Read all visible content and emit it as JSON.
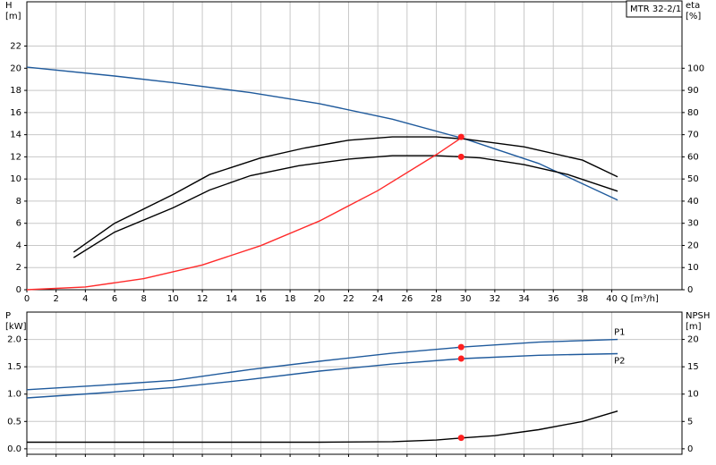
{
  "chart_data": [
    {
      "type": "line",
      "title": "MTR 32-2/1",
      "y_label": "H",
      "y_unit": "[m]",
      "y2_label": "eta",
      "y2_unit": "[%]",
      "x_label": "Q [m³/h]",
      "xlim": [
        0,
        44.8
      ],
      "xticks": [
        0,
        2,
        4,
        6,
        8,
        10,
        12,
        14,
        16,
        18,
        20,
        22,
        24,
        26,
        28,
        30,
        32,
        34,
        36,
        38,
        40
      ],
      "ylim": [
        0,
        26
      ],
      "yticks": [
        0,
        2,
        4,
        6,
        8,
        10,
        12,
        14,
        16,
        18,
        20,
        22
      ],
      "y2lim": [
        0,
        130
      ],
      "y2ticks": [
        0,
        10,
        20,
        30,
        40,
        50,
        60,
        70,
        80,
        90,
        100
      ],
      "grid": true,
      "series": [
        {
          "color": "#1f5a9c",
          "axis": "y",
          "x": [
            0,
            6,
            10,
            15.3,
            20,
            25,
            30,
            35,
            40.4
          ],
          "values": [
            20.1,
            19.3,
            18.7,
            17.8,
            16.8,
            15.4,
            13.6,
            11.4,
            8.1
          ]
        },
        {
          "color": "#000000",
          "axis": "y2",
          "x": [
            3.2,
            6,
            10,
            12.5,
            16,
            19,
            22,
            25,
            28,
            30,
            34,
            38,
            40.4
          ],
          "values": [
            17,
            30,
            43,
            52,
            59.5,
            64,
            67.5,
            69,
            69,
            68,
            64.5,
            58.5,
            51
          ]
        },
        {
          "color": "#000000",
          "axis": "y2",
          "x": [
            3.2,
            6,
            10,
            12.5,
            15.3,
            18.6,
            22,
            25,
            28,
            29.8,
            31,
            34,
            37,
            40.4
          ],
          "values": [
            14.5,
            26,
            37,
            45,
            51.5,
            56,
            59,
            60.5,
            60.5,
            60,
            59.5,
            56.5,
            52,
            44.5
          ]
        },
        {
          "color": "#ff2a2a",
          "axis": "y",
          "x": [
            0,
            4,
            8,
            12,
            16,
            20,
            24,
            28,
            29.8
          ],
          "values": [
            0,
            0.25,
            1.0,
            2.24,
            3.98,
            6.2,
            8.95,
            12.2,
            13.8
          ]
        }
      ],
      "points": [
        {
          "x": 29.7,
          "value": 13.8,
          "axis": "y",
          "color": "#ff2020"
        },
        {
          "x": 29.7,
          "value": 60,
          "axis": "y2",
          "color": "#ff2020"
        }
      ]
    },
    {
      "type": "line",
      "y_label": "P",
      "y_unit": "[kW]",
      "y2_label": "NPSH",
      "y2_unit": "[m]",
      "xlim": [
        0,
        44.8
      ],
      "xticks": [
        0,
        2,
        4,
        6,
        8,
        10,
        12,
        14,
        16,
        18,
        20,
        22,
        24,
        26,
        28,
        30,
        32,
        34,
        36,
        38,
        40
      ],
      "ylim": [
        -0.1,
        2.5
      ],
      "yticks": [
        {
          "value": 0,
          "label": "0.0"
        },
        0.5,
        {
          "value": 1,
          "label": "1.0"
        },
        1.5,
        {
          "value": 2,
          "label": "2.0"
        }
      ],
      "y2lim": [
        -1,
        25
      ],
      "y2ticks": [
        0,
        5,
        10,
        15,
        20
      ],
      "grid": true,
      "series": [
        {
          "name": "P1",
          "color": "#1f5a9c",
          "axis": "y",
          "x": [
            0,
            5,
            10,
            15.3,
            20,
            25,
            29.8,
            35,
            40.4
          ],
          "values": [
            1.08,
            1.16,
            1.25,
            1.45,
            1.6,
            1.75,
            1.86,
            1.95,
            2.0
          ]
        },
        {
          "name": "P2",
          "color": "#1f5a9c",
          "axis": "y",
          "x": [
            0,
            5,
            10,
            15,
            20,
            25,
            29.8,
            35,
            40.4
          ],
          "values": [
            0.93,
            1.02,
            1.12,
            1.26,
            1.42,
            1.55,
            1.65,
            1.71,
            1.74
          ]
        },
        {
          "color": "#000000",
          "axis": "y2",
          "x": [
            0,
            15.3,
            20,
            25,
            28,
            29.8,
            32,
            35,
            38,
            40.4
          ],
          "values": [
            1.2,
            1.2,
            1.2,
            1.3,
            1.6,
            2.0,
            2.4,
            3.5,
            5.0,
            6.9
          ]
        }
      ],
      "points": [
        {
          "x": 29.7,
          "value": 1.86,
          "axis": "y",
          "color": "#ff2020"
        },
        {
          "x": 29.7,
          "value": 1.65,
          "axis": "y",
          "color": "#ff2020"
        },
        {
          "x": 29.7,
          "value": 2.0,
          "axis": "y2",
          "color": "#ff2020"
        }
      ]
    }
  ]
}
